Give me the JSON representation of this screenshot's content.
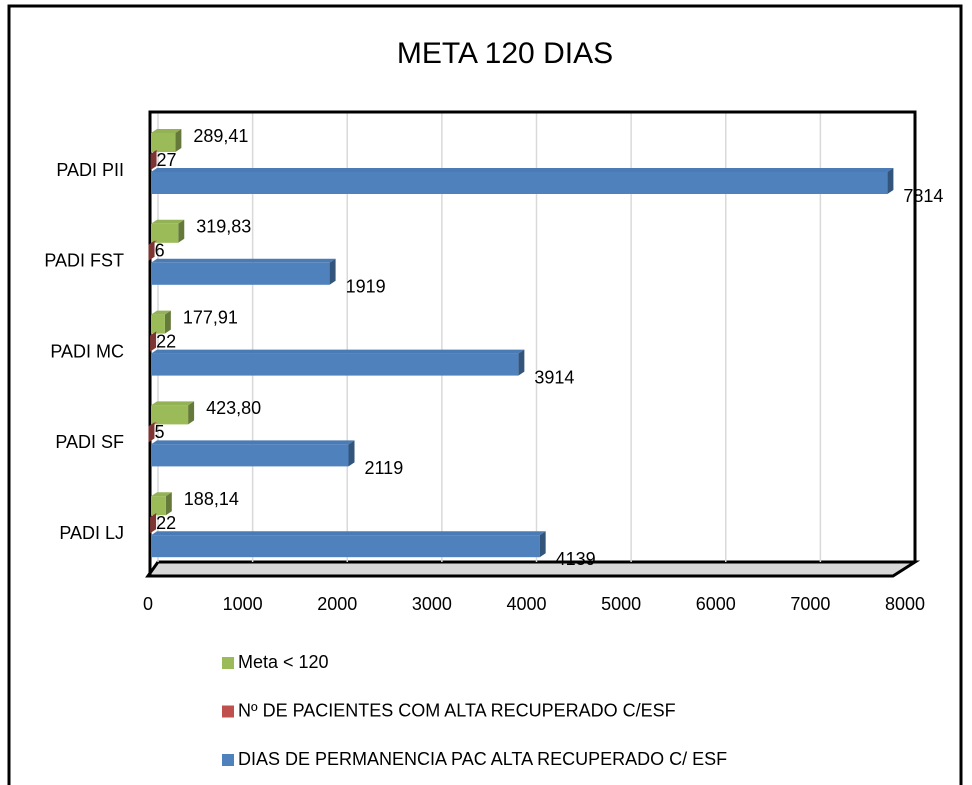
{
  "chart_data": {
    "type": "bar3d_horizontal",
    "title": "META 120 DIAS",
    "categories": [
      "PADI PII",
      "PADI FST",
      "PADI MC",
      "PADI SF",
      "PADI LJ"
    ],
    "series": [
      {
        "name": "Meta < 120",
        "color": "#9bbb59",
        "values": [
          289.41,
          319.83,
          177.91,
          423.8,
          188.14
        ],
        "value_labels": [
          "289,41",
          "319,83",
          "177,91",
          "423,80",
          "188,14"
        ]
      },
      {
        "name": "Nº DE PACIENTES COM ALTA RECUPERADO C/ESF",
        "color": "#c0504d",
        "values": [
          27,
          6,
          22,
          5,
          22
        ]
      },
      {
        "name": "DIAS DE PERMANENCIA PAC ALTA RECUPERADO C/ ESF",
        "color": "#4f81bd",
        "values": [
          7814,
          1919,
          3914,
          2119,
          4139
        ]
      }
    ],
    "xlim": [
      0,
      8000
    ],
    "xticks": [
      0,
      1000,
      2000,
      3000,
      4000,
      5000,
      6000,
      7000,
      8000
    ],
    "grid": true,
    "legend": "bottom"
  }
}
